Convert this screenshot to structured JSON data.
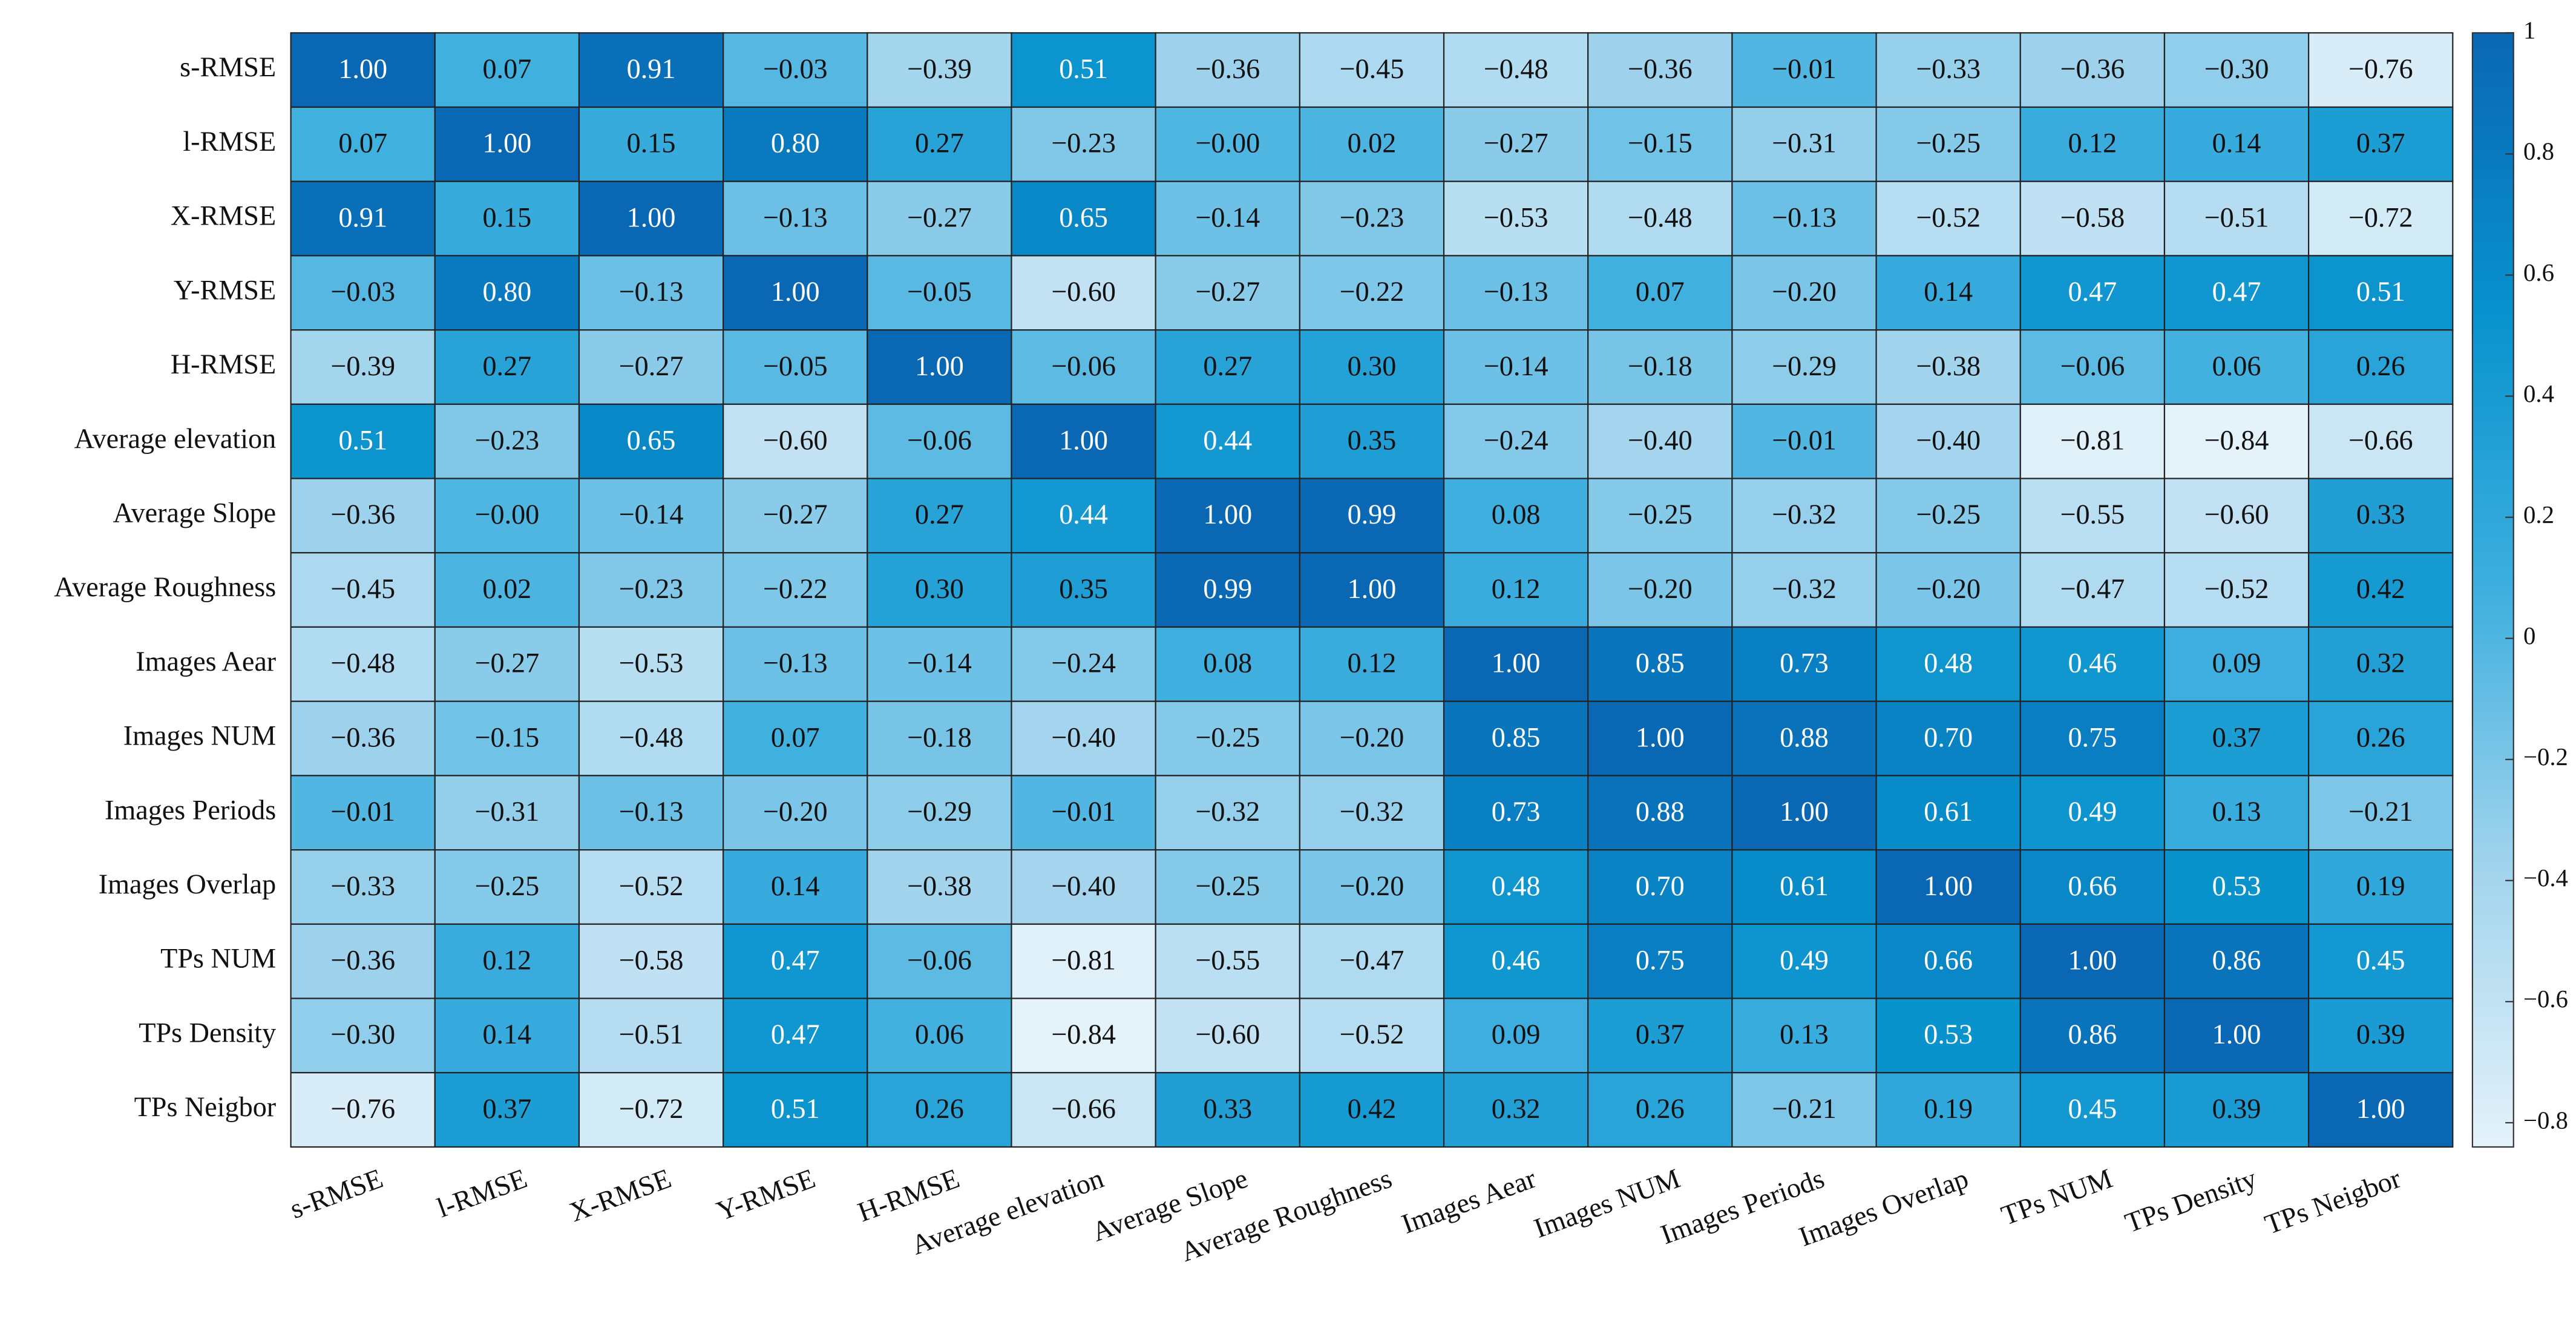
{
  "chart_data": {
    "type": "heatmap",
    "x_categories": [
      "s-RMSE",
      "l-RMSE",
      "X-RMSE",
      "Y-RMSE",
      "H-RMSE",
      "Average elevation",
      "Average Slope",
      "Average Roughness",
      "Images Aear",
      "Images NUM",
      "Images Periods",
      "Images Overlap",
      "TPs NUM",
      "TPs Density",
      "TPs Neigbor"
    ],
    "y_categories": [
      "s-RMSE",
      "l-RMSE",
      "X-RMSE",
      "Y-RMSE",
      "H-RMSE",
      "Average elevation",
      "Average Slope",
      "Average Roughness",
      "Images Aear",
      "Images NUM",
      "Images Periods",
      "Images Overlap",
      "TPs NUM",
      "TPs Density",
      "TPs Neigbor"
    ],
    "values": [
      [
        1.0,
        0.07,
        0.91,
        -0.03,
        -0.39,
        0.51,
        -0.36,
        -0.45,
        -0.48,
        -0.36,
        -0.01,
        -0.33,
        -0.36,
        -0.3,
        -0.76
      ],
      [
        0.07,
        1.0,
        0.15,
        0.8,
        0.27,
        -0.23,
        -0.0,
        0.02,
        -0.27,
        -0.15,
        -0.31,
        -0.25,
        0.12,
        0.14,
        0.37
      ],
      [
        0.91,
        0.15,
        1.0,
        -0.13,
        -0.27,
        0.65,
        -0.14,
        -0.23,
        -0.53,
        -0.48,
        -0.13,
        -0.52,
        -0.58,
        -0.51,
        -0.72
      ],
      [
        -0.03,
        0.8,
        -0.13,
        1.0,
        -0.05,
        -0.6,
        -0.27,
        -0.22,
        -0.13,
        0.07,
        -0.2,
        0.14,
        0.47,
        0.47,
        0.51
      ],
      [
        -0.39,
        0.27,
        -0.27,
        -0.05,
        1.0,
        -0.06,
        0.27,
        0.3,
        -0.14,
        -0.18,
        -0.29,
        -0.38,
        -0.06,
        0.06,
        0.26
      ],
      [
        0.51,
        -0.23,
        0.65,
        -0.6,
        -0.06,
        1.0,
        0.44,
        0.35,
        -0.24,
        -0.4,
        -0.01,
        -0.4,
        -0.81,
        -0.84,
        -0.66
      ],
      [
        -0.36,
        -0.0,
        -0.14,
        -0.27,
        0.27,
        0.44,
        1.0,
        0.99,
        0.08,
        -0.25,
        -0.32,
        -0.25,
        -0.55,
        -0.6,
        0.33
      ],
      [
        -0.45,
        0.02,
        -0.23,
        -0.22,
        0.3,
        0.35,
        0.99,
        1.0,
        0.12,
        -0.2,
        -0.32,
        -0.2,
        -0.47,
        -0.52,
        0.42
      ],
      [
        -0.48,
        -0.27,
        -0.53,
        -0.13,
        -0.14,
        -0.24,
        0.08,
        0.12,
        1.0,
        0.85,
        0.73,
        0.48,
        0.46,
        0.09,
        0.32
      ],
      [
        -0.36,
        -0.15,
        -0.48,
        0.07,
        -0.18,
        -0.4,
        -0.25,
        -0.2,
        0.85,
        1.0,
        0.88,
        0.7,
        0.75,
        0.37,
        0.26
      ],
      [
        -0.01,
        -0.31,
        -0.13,
        -0.2,
        -0.29,
        -0.01,
        -0.32,
        -0.32,
        0.73,
        0.88,
        1.0,
        0.61,
        0.49,
        0.13,
        -0.21
      ],
      [
        -0.33,
        -0.25,
        -0.52,
        0.14,
        -0.38,
        -0.4,
        -0.25,
        -0.2,
        0.48,
        0.7,
        0.61,
        1.0,
        0.66,
        0.53,
        0.19
      ],
      [
        -0.36,
        0.12,
        -0.58,
        0.47,
        -0.06,
        -0.81,
        -0.55,
        -0.47,
        0.46,
        0.75,
        0.49,
        0.66,
        1.0,
        0.86,
        0.45
      ],
      [
        -0.3,
        0.14,
        -0.51,
        0.47,
        0.06,
        -0.84,
        -0.6,
        -0.52,
        0.09,
        0.37,
        0.13,
        0.53,
        0.86,
        1.0,
        0.39
      ],
      [
        -0.76,
        0.37,
        -0.72,
        0.51,
        0.26,
        -0.66,
        0.33,
        0.42,
        0.32,
        0.26,
        -0.21,
        0.19,
        0.45,
        0.39,
        1.0
      ]
    ],
    "value_labels": [
      [
        "1.00",
        "0.07",
        "0.91",
        "−0.03",
        "−0.39",
        "0.51",
        "−0.36",
        "−0.45",
        "−0.48",
        "−0.36",
        "−0.01",
        "−0.33",
        "−0.36",
        "−0.30",
        "−0.76"
      ],
      [
        "0.07",
        "1.00",
        "0.15",
        "0.80",
        "0.27",
        "−0.23",
        "−0.00",
        "0.02",
        "−0.27",
        "−0.15",
        "−0.31",
        "−0.25",
        "0.12",
        "0.14",
        "0.37"
      ],
      [
        "0.91",
        "0.15",
        "1.00",
        "−0.13",
        "−0.27",
        "0.65",
        "−0.14",
        "−0.23",
        "−0.53",
        "−0.48",
        "−0.13",
        "−0.52",
        "−0.58",
        "−0.51",
        "−0.72"
      ],
      [
        "−0.03",
        "0.80",
        "−0.13",
        "1.00",
        "−0.05",
        "−0.60",
        "−0.27",
        "−0.22",
        "−0.13",
        "0.07",
        "−0.20",
        "0.14",
        "0.47",
        "0.47",
        "0.51"
      ],
      [
        "−0.39",
        "0.27",
        "−0.27",
        "−0.05",
        "1.00",
        "−0.06",
        "0.27",
        "0.30",
        "−0.14",
        "−0.18",
        "−0.29",
        "−0.38",
        "−0.06",
        "0.06",
        "0.26"
      ],
      [
        "0.51",
        "−0.23",
        "0.65",
        "−0.60",
        "−0.06",
        "1.00",
        "0.44",
        "0.35",
        "−0.24",
        "−0.40",
        "−0.01",
        "−0.40",
        "−0.81",
        "−0.84",
        "−0.66"
      ],
      [
        "−0.36",
        "−0.00",
        "−0.14",
        "−0.27",
        "0.27",
        "0.44",
        "1.00",
        "0.99",
        "0.08",
        "−0.25",
        "−0.32",
        "−0.25",
        "−0.55",
        "−0.60",
        "0.33"
      ],
      [
        "−0.45",
        "0.02",
        "−0.23",
        "−0.22",
        "0.30",
        "0.35",
        "0.99",
        "1.00",
        "0.12",
        "−0.20",
        "−0.32",
        "−0.20",
        "−0.47",
        "−0.52",
        "0.42"
      ],
      [
        "−0.48",
        "−0.27",
        "−0.53",
        "−0.13",
        "−0.14",
        "−0.24",
        "0.08",
        "0.12",
        "1.00",
        "0.85",
        "0.73",
        "0.48",
        "0.46",
        "0.09",
        "0.32"
      ],
      [
        "−0.36",
        "−0.15",
        "−0.48",
        "0.07",
        "−0.18",
        "−0.40",
        "−0.25",
        "−0.20",
        "0.85",
        "1.00",
        "0.88",
        "0.70",
        "0.75",
        "0.37",
        "0.26"
      ],
      [
        "−0.01",
        "−0.31",
        "−0.13",
        "−0.20",
        "−0.29",
        "−0.01",
        "−0.32",
        "−0.32",
        "0.73",
        "0.88",
        "1.00",
        "0.61",
        "0.49",
        "0.13",
        "−0.21"
      ],
      [
        "−0.33",
        "−0.25",
        "−0.52",
        "0.14",
        "−0.38",
        "−0.40",
        "−0.25",
        "−0.20",
        "0.48",
        "0.70",
        "0.61",
        "1.00",
        "0.66",
        "0.53",
        "0.19"
      ],
      [
        "−0.36",
        "0.12",
        "−0.58",
        "0.47",
        "−0.06",
        "−0.81",
        "−0.55",
        "−0.47",
        "0.46",
        "0.75",
        "0.49",
        "0.66",
        "1.00",
        "0.86",
        "0.45"
      ],
      [
        "−0.30",
        "0.14",
        "−0.51",
        "0.47",
        "0.06",
        "−0.84",
        "−0.60",
        "−0.52",
        "0.09",
        "0.37",
        "0.13",
        "0.53",
        "0.86",
        "1.00",
        "0.39"
      ],
      [
        "−0.76",
        "0.37",
        "−0.72",
        "0.51",
        "0.26",
        "−0.66",
        "0.33",
        "0.42",
        "0.32",
        "0.26",
        "−0.21",
        "0.19",
        "0.45",
        "0.39",
        "1.00"
      ]
    ],
    "zlim": [
      -0.84,
      1
    ],
    "zticks": [
      1,
      0.8,
      0.6,
      0.4,
      0.2,
      0,
      {
        "value": -0.2,
        "label": "−0.2"
      },
      {
        "value": -0.4,
        "label": "−0.4"
      },
      {
        "value": -0.6,
        "label": "−0.6"
      },
      {
        "value": -0.8,
        "label": "−0.8"
      }
    ],
    "colormap": [
      "#e4f2fa",
      "#a2d4ed",
      "#3eafdf",
      "#0892cd",
      "#0a67b4"
    ]
  }
}
